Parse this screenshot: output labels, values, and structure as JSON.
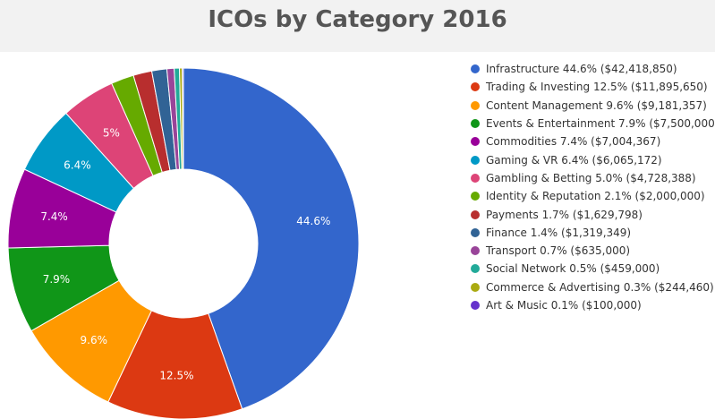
{
  "chart_data": {
    "type": "pie",
    "donut": true,
    "title": "ICOs by Category 2016",
    "legend_position": "right",
    "slices": [
      {
        "name": "Infrastructure",
        "percent": 44.6,
        "amount": "$42,418,850",
        "value": 42418850,
        "color": "#3366cc",
        "label": "44.6%",
        "legend": "Infrastructure 44.6% ($42,418,850)"
      },
      {
        "name": "Trading & Investing",
        "percent": 12.5,
        "amount": "$11,895,650",
        "value": 11895650,
        "color": "#dc3912",
        "label": "12.5%",
        "legend": "Trading & Investing 12.5% ($11,895,650)"
      },
      {
        "name": "Content Management",
        "percent": 9.6,
        "amount": "$9,181,357",
        "value": 9181357,
        "color": "#ff9900",
        "label": "9.6%",
        "legend": "Content Management 9.6% ($9,181,357)"
      },
      {
        "name": "Events & Entertainment",
        "percent": 7.9,
        "amount": "$7,500,000",
        "value": 7500000,
        "color": "#109618",
        "label": "7.9%",
        "legend": "Events & Entertainment 7.9% ($7,500,000)"
      },
      {
        "name": "Commodities",
        "percent": 7.4,
        "amount": "$7,004,367",
        "value": 7004367,
        "color": "#990099",
        "label": "7.4%",
        "legend": "Commodities 7.4% ($7,004,367)"
      },
      {
        "name": "Gaming & VR",
        "percent": 6.4,
        "amount": "$6,065,172",
        "value": 6065172,
        "color": "#0099c6",
        "label": "6.4%",
        "legend": "Gaming & VR 6.4% ($6,065,172)"
      },
      {
        "name": "Gambling & Betting",
        "percent": 5.0,
        "amount": "$4,728,388",
        "value": 4728388,
        "color": "#dd4477",
        "label": "5%",
        "legend": "Gambling & Betting 5.0% ($4,728,388)"
      },
      {
        "name": "Identity & Reputation",
        "percent": 2.1,
        "amount": "$2,000,000",
        "value": 2000000,
        "color": "#66aa00",
        "label": "",
        "legend": "Identity & Reputation 2.1% ($2,000,000)"
      },
      {
        "name": "Payments",
        "percent": 1.7,
        "amount": "$1,629,798",
        "value": 1629798,
        "color": "#b82e2e",
        "label": "",
        "legend": "Payments 1.7% ($1,629,798)"
      },
      {
        "name": "Finance",
        "percent": 1.4,
        "amount": "$1,319,349",
        "value": 1319349,
        "color": "#316395",
        "label": "",
        "legend": "Finance 1.4% ($1,319,349)"
      },
      {
        "name": "Transport",
        "percent": 0.7,
        "amount": "$635,000",
        "value": 635000,
        "color": "#994499",
        "label": "",
        "legend": "Transport 0.7% ($635,000)"
      },
      {
        "name": "Social Network",
        "percent": 0.5,
        "amount": "$459,000",
        "value": 459000,
        "color": "#22aa99",
        "label": "",
        "legend": "Social Network 0.5% ($459,000)"
      },
      {
        "name": "Commerce & Advertising",
        "percent": 0.3,
        "amount": "$244,460",
        "value": 244460,
        "color": "#aaaa11",
        "label": "",
        "legend": "Commerce & Advertising 0.3% ($244,460)"
      },
      {
        "name": "Art & Music",
        "percent": 0.1,
        "amount": "$100,000",
        "value": 100000,
        "color": "#6633cc",
        "label": "",
        "legend": "Art & Music 0.1% ($100,000)"
      }
    ]
  }
}
